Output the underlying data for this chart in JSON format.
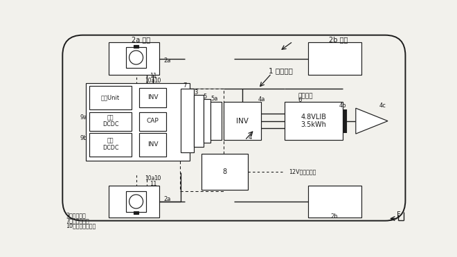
{
  "bg": "#f2f1ec",
  "lc": "#1c1c1c",
  "bf": "#ffffff",
  "fw_label": "2a 前輪",
  "rw_label": "2b 後輪",
  "title": "1 駆動装置",
  "bat_title": "バッテリ",
  "bat_num": "6",
  "bat_box": "4.8VLIB\n3.5kWh",
  "inv_label": "INV",
  "cap_label": "CAP",
  "sogounit": "統合Unit",
  "kouatsu": "高圧\nDCDC",
  "teihatsu": "低圧\nDCDC",
  "label_12v": "12V車両電装品",
  "legend": [
    "3：エンジン",
    "7：キャパシタ",
    "10：副駆動モータ"
  ],
  "f_label": "F"
}
